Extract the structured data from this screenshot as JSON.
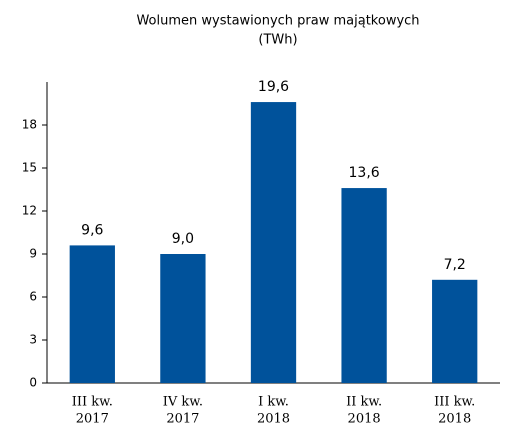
{
  "chart_data": {
    "type": "bar",
    "title": "Wolumen wystawionych praw majątkowych",
    "subtitle": "(TWh)",
    "categories": [
      [
        "III kw.",
        "2017"
      ],
      [
        "IV kw.",
        "2017"
      ],
      [
        "I kw.",
        "2018"
      ],
      [
        "II kw.",
        "2018"
      ],
      [
        "III kw.",
        "2018"
      ]
    ],
    "values": [
      9.6,
      9.0,
      19.6,
      13.6,
      7.2
    ],
    "value_labels": [
      "9,6",
      "9,0",
      "19,6",
      "13,6",
      "7,2"
    ],
    "color": "#00529b",
    "ylim": [
      0,
      21
    ],
    "yticks": [
      0,
      3,
      6,
      9,
      12,
      15,
      18
    ],
    "grid": false
  }
}
